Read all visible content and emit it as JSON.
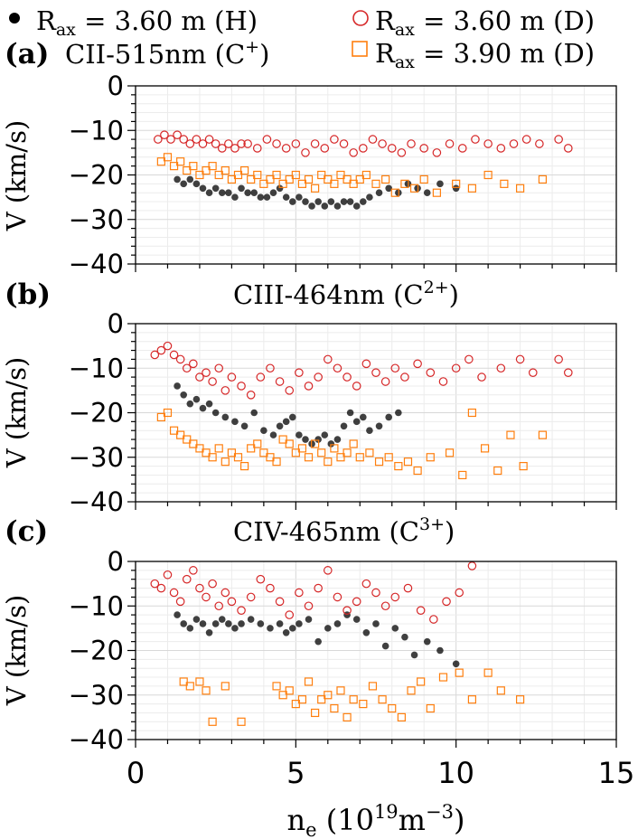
{
  "legend": {
    "entries": [
      {
        "prefix": "R",
        "sub": "ax",
        "text": " = 3.60 m (H)",
        "marker": "filled-circle",
        "color": "#000000"
      },
      {
        "prefix": "R",
        "sub": "ax",
        "text": " = 3.60 m (D)",
        "marker": "open-circle",
        "color": "#d62728"
      },
      {
        "prefix": "R",
        "sub": "ax",
        "text": " = 3.90 m (D)",
        "marker": "open-square",
        "color": "#ff7f0e"
      }
    ]
  },
  "xaxis": {
    "label_main": "n",
    "label_sub": "e",
    "label_unit_open": " (10",
    "label_exp1": "19",
    "label_unit_mid": "m",
    "label_exp2": "−3",
    "label_close": ")",
    "ticks": [
      "0",
      "5",
      "10",
      "15"
    ],
    "range": [
      0,
      15
    ]
  },
  "chart_data": [
    {
      "type": "scatter",
      "panel_label": "(a)",
      "title_main": "CII-515nm (C",
      "title_sup": "+",
      "title_close": ")",
      "ylabel": "V (km/s)",
      "ylim": [
        -40,
        0
      ],
      "xlim": [
        0,
        15
      ],
      "yticks": [
        "0",
        "−10",
        "−20",
        "−30",
        "−40"
      ],
      "grid": true,
      "series": [
        {
          "name": "R_ax = 3.60 m (H)",
          "marker": "filled-circle",
          "color": "#000000",
          "x": [
            1.3,
            1.5,
            1.7,
            1.9,
            2.1,
            2.3,
            2.5,
            2.7,
            2.9,
            3.1,
            3.3,
            3.5,
            3.7,
            3.9,
            4.1,
            4.3,
            4.5,
            4.7,
            4.9,
            5.1,
            5.3,
            5.5,
            5.7,
            5.9,
            6.1,
            6.3,
            6.5,
            6.7,
            6.9,
            7.1,
            7.3,
            7.6,
            7.9,
            8.2,
            8.5,
            8.8,
            9.1,
            9.5,
            10.0
          ],
          "y": [
            -21,
            -22,
            -21,
            -22,
            -23,
            -24,
            -23,
            -24,
            -24,
            -25,
            -23,
            -24,
            -24,
            -25,
            -25,
            -24,
            -23,
            -25,
            -26,
            -25,
            -26,
            -27,
            -26,
            -27,
            -26,
            -27,
            -26,
            -26,
            -27,
            -26,
            -25,
            -24,
            -23,
            -24,
            -22,
            -23,
            -24,
            -22,
            -23
          ]
        },
        {
          "name": "R_ax = 3.60 m (D)",
          "marker": "open-circle",
          "color": "#d62728",
          "x": [
            0.7,
            0.9,
            1.1,
            1.3,
            1.5,
            1.7,
            1.9,
            2.1,
            2.3,
            2.5,
            2.7,
            2.9,
            3.1,
            3.3,
            3.5,
            3.8,
            4.1,
            4.4,
            4.7,
            5.0,
            5.3,
            5.6,
            5.9,
            6.2,
            6.5,
            6.8,
            7.1,
            7.4,
            7.7,
            8.0,
            8.3,
            8.6,
            9.0,
            9.4,
            9.8,
            10.2,
            10.6,
            11.0,
            11.4,
            11.8,
            12.2,
            12.6,
            13.2,
            13.5
          ],
          "y": [
            -12,
            -11,
            -12,
            -11,
            -12,
            -13,
            -12,
            -13,
            -12,
            -13,
            -14,
            -13,
            -14,
            -13,
            -13,
            -14,
            -12,
            -13,
            -14,
            -13,
            -15,
            -13,
            -14,
            -12,
            -13,
            -15,
            -14,
            -12,
            -13,
            -14,
            -15,
            -13,
            -14,
            -15,
            -13,
            -14,
            -12,
            -13,
            -14,
            -13,
            -12,
            -13,
            -12,
            -14
          ]
        },
        {
          "name": "R_ax = 3.90 m (D)",
          "marker": "open-square",
          "color": "#ff7f0e",
          "x": [
            0.8,
            1.0,
            1.2,
            1.4,
            1.6,
            1.8,
            2.0,
            2.2,
            2.4,
            2.6,
            2.8,
            3.0,
            3.2,
            3.4,
            3.6,
            3.8,
            4.0,
            4.2,
            4.4,
            4.6,
            4.8,
            5.0,
            5.2,
            5.4,
            5.6,
            5.8,
            6.0,
            6.2,
            6.4,
            6.6,
            6.8,
            7.0,
            7.2,
            7.5,
            7.8,
            8.1,
            8.4,
            8.7,
            9.0,
            9.4,
            10.0,
            10.5,
            11.0,
            11.5,
            12.0,
            12.7
          ],
          "y": [
            -17,
            -16,
            -18,
            -17,
            -19,
            -18,
            -20,
            -19,
            -18,
            -20,
            -19,
            -21,
            -20,
            -19,
            -21,
            -20,
            -22,
            -21,
            -20,
            -22,
            -21,
            -20,
            -22,
            -21,
            -23,
            -20,
            -21,
            -22,
            -20,
            -21,
            -22,
            -21,
            -20,
            -22,
            -21,
            -24,
            -22,
            -23,
            -21,
            -24,
            -22,
            -23,
            -20,
            -22,
            -23,
            -21
          ]
        }
      ]
    },
    {
      "type": "scatter",
      "panel_label": "(b)",
      "title_main": "CIII-464nm (C",
      "title_sup": "2+",
      "title_close": ")",
      "ylabel": "V (km/s)",
      "ylim": [
        -40,
        0
      ],
      "xlim": [
        0,
        15
      ],
      "yticks": [
        "0",
        "−10",
        "−20",
        "−30",
        "−40"
      ],
      "grid": true,
      "series": [
        {
          "name": "R_ax = 3.60 m (H)",
          "marker": "filled-circle",
          "color": "#000000",
          "x": [
            1.3,
            1.5,
            1.7,
            1.9,
            2.1,
            2.3,
            2.5,
            2.8,
            3.1,
            3.4,
            3.7,
            4.0,
            4.3,
            4.5,
            4.7,
            4.9,
            5.1,
            5.3,
            5.5,
            5.7,
            5.9,
            6.1,
            6.3,
            6.5,
            6.7,
            6.9,
            7.1,
            7.3,
            7.6,
            7.9,
            8.2
          ],
          "y": [
            -14,
            -16,
            -18,
            -17,
            -19,
            -18,
            -20,
            -21,
            -22,
            -23,
            -20,
            -24,
            -25,
            -23,
            -22,
            -21,
            -25,
            -26,
            -27,
            -26,
            -25,
            -27,
            -26,
            -23,
            -20,
            -22,
            -21,
            -24,
            -23,
            -21,
            -20
          ]
        },
        {
          "name": "R_ax = 3.60 m (D)",
          "marker": "open-circle",
          "color": "#d62728",
          "x": [
            0.6,
            0.8,
            1.0,
            1.2,
            1.4,
            1.6,
            1.8,
            2.0,
            2.2,
            2.4,
            2.6,
            2.8,
            3.0,
            3.3,
            3.6,
            3.9,
            4.2,
            4.5,
            4.8,
            5.1,
            5.4,
            5.7,
            6.0,
            6.3,
            6.6,
            6.9,
            7.2,
            7.5,
            7.8,
            8.1,
            8.4,
            8.8,
            9.2,
            9.6,
            10.0,
            10.4,
            10.8,
            11.4,
            12.0,
            12.4,
            13.2,
            13.5
          ],
          "y": [
            -7,
            -6,
            -5,
            -7,
            -8,
            -10,
            -9,
            -12,
            -11,
            -13,
            -10,
            -15,
            -12,
            -14,
            -16,
            -12,
            -10,
            -13,
            -15,
            -11,
            -14,
            -12,
            -8,
            -10,
            -12,
            -14,
            -9,
            -11,
            -13,
            -10,
            -12,
            -9,
            -11,
            -13,
            -10,
            -8,
            -12,
            -10,
            -8,
            -11,
            -8,
            -11
          ]
        },
        {
          "name": "R_ax = 3.90 m (D)",
          "marker": "open-square",
          "color": "#ff7f0e",
          "x": [
            0.8,
            1.0,
            1.2,
            1.4,
            1.6,
            1.8,
            2.0,
            2.2,
            2.4,
            2.6,
            2.8,
            3.0,
            3.2,
            3.4,
            3.6,
            3.8,
            4.0,
            4.2,
            4.4,
            4.6,
            4.8,
            5.0,
            5.2,
            5.4,
            5.6,
            5.8,
            6.0,
            6.2,
            6.4,
            6.6,
            6.8,
            7.0,
            7.3,
            7.6,
            7.9,
            8.2,
            8.5,
            8.8,
            9.2,
            9.8,
            10.2,
            10.5,
            10.9,
            11.3,
            11.7,
            12.1,
            12.7
          ],
          "y": [
            -21,
            -20,
            -24,
            -25,
            -26,
            -27,
            -28,
            -29,
            -30,
            -28,
            -31,
            -29,
            -30,
            -32,
            -28,
            -27,
            -29,
            -30,
            -31,
            -26,
            -27,
            -29,
            -28,
            -30,
            -27,
            -29,
            -31,
            -28,
            -30,
            -29,
            -27,
            -30,
            -29,
            -31,
            -30,
            -32,
            -31,
            -33,
            -30,
            -29,
            -34,
            -20,
            -28,
            -33,
            -25,
            -32,
            -25
          ]
        }
      ]
    },
    {
      "type": "scatter",
      "panel_label": "(c)",
      "title_main": "CIV-465nm (C",
      "title_sup": "3+",
      "title_close": ")",
      "ylabel": "V (km/s)",
      "ylim": [
        -40,
        0
      ],
      "xlim": [
        0,
        15
      ],
      "yticks": [
        "0",
        "−10",
        "−20",
        "−30",
        "−40"
      ],
      "grid": true,
      "series": [
        {
          "name": "R_ax = 3.60 m (H)",
          "marker": "filled-circle",
          "color": "#000000",
          "x": [
            1.3,
            1.5,
            1.7,
            1.9,
            2.1,
            2.3,
            2.5,
            2.7,
            2.9,
            3.1,
            3.3,
            3.6,
            3.9,
            4.2,
            4.5,
            4.7,
            4.9,
            5.1,
            5.4,
            5.7,
            6.0,
            6.3,
            6.6,
            6.9,
            7.2,
            7.5,
            7.8,
            8.1,
            8.4,
            8.7,
            9.1,
            9.5,
            10.0
          ],
          "y": [
            -12,
            -14,
            -15,
            -13,
            -14,
            -16,
            -14,
            -13,
            -14,
            -15,
            -14,
            -13,
            -14,
            -15,
            -14,
            -16,
            -15,
            -14,
            -13,
            -18,
            -15,
            -14,
            -12,
            -13,
            -16,
            -14,
            -19,
            -15,
            -17,
            -21,
            -18,
            -20,
            -23
          ]
        },
        {
          "name": "R_ax = 3.60 m (D)",
          "marker": "open-circle",
          "color": "#d62728",
          "x": [
            0.6,
            0.8,
            1.0,
            1.2,
            1.4,
            1.6,
            1.8,
            2.0,
            2.2,
            2.4,
            2.6,
            2.8,
            3.0,
            3.3,
            3.6,
            3.9,
            4.2,
            4.5,
            4.8,
            5.1,
            5.4,
            5.7,
            6.0,
            6.3,
            6.6,
            6.9,
            7.2,
            7.5,
            7.8,
            8.1,
            8.5,
            8.9,
            9.3,
            9.7,
            10.1,
            10.5
          ],
          "y": [
            -5,
            -6,
            -3,
            -7,
            -9,
            -4,
            -2,
            -6,
            -8,
            -5,
            -10,
            -7,
            -9,
            -11,
            -8,
            -4,
            -6,
            -9,
            -12,
            -7,
            -10,
            -6,
            -2,
            -8,
            -11,
            -9,
            -5,
            -7,
            -10,
            -8,
            -6,
            -11,
            -13,
            -9,
            -7,
            -1
          ]
        },
        {
          "name": "R_ax = 3.90 m (D)",
          "marker": "open-square",
          "color": "#ff7f0e",
          "x": [
            1.5,
            1.7,
            2.0,
            2.2,
            2.4,
            2.8,
            3.3,
            4.4,
            4.6,
            4.8,
            5.0,
            5.2,
            5.4,
            5.6,
            5.8,
            6.0,
            6.2,
            6.4,
            6.6,
            6.8,
            7.1,
            7.4,
            7.7,
            8.0,
            8.3,
            8.6,
            8.9,
            9.2,
            9.6,
            10.1,
            10.5,
            11.0,
            11.4,
            12.0
          ],
          "y": [
            -27,
            -28,
            -27,
            -29,
            -36,
            -28,
            -36,
            -28,
            -30,
            -29,
            -32,
            -31,
            -27,
            -34,
            -31,
            -30,
            -33,
            -29,
            -35,
            -31,
            -32,
            -28,
            -31,
            -33,
            -35,
            -29,
            -27,
            -33,
            -26,
            -25,
            -31,
            -25,
            -29,
            -31
          ]
        }
      ]
    }
  ]
}
